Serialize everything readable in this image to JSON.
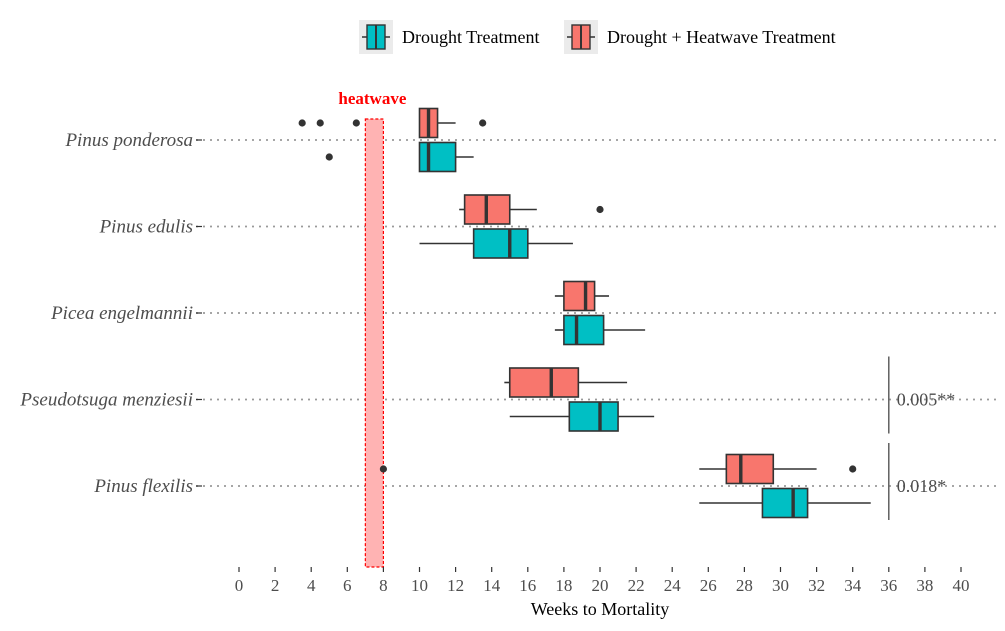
{
  "chart_data": {
    "type": "boxplot",
    "orientation": "horizontal",
    "xlabel": "Weeks to Mortality",
    "xlim": [
      0,
      40
    ],
    "x_ticks": [
      0,
      2,
      4,
      6,
      8,
      10,
      12,
      14,
      16,
      18,
      20,
      22,
      24,
      26,
      28,
      30,
      32,
      34,
      36,
      38,
      40
    ],
    "categories": [
      "Pinus ponderosa",
      "Pinus edulis",
      "Picea engelmannii",
      "Pseudotsuga menziesii",
      "Pinus flexilis"
    ],
    "legend": {
      "position": "top",
      "entries": [
        "Drought Treatment",
        "Drought + Heatwave Treatment"
      ]
    },
    "series": [
      {
        "name": "Drought Treatment",
        "color": "#00BFC4",
        "boxes": [
          {
            "category": "Pinus ponderosa",
            "whisker_low": 10,
            "q1": 10,
            "median": 10.5,
            "q3": 12,
            "whisker_high": 13,
            "outliers": [
              5
            ]
          },
          {
            "category": "Pinus edulis",
            "whisker_low": 10,
            "q1": 13,
            "median": 15,
            "q3": 16,
            "whisker_high": 18.5,
            "outliers": []
          },
          {
            "category": "Picea engelmannii",
            "whisker_low": 17.5,
            "q1": 18,
            "median": 18.7,
            "q3": 20.2,
            "whisker_high": 22.5,
            "outliers": []
          },
          {
            "category": "Pseudotsuga menziesii",
            "whisker_low": 15,
            "q1": 18.3,
            "median": 20,
            "q3": 21,
            "whisker_high": 23,
            "outliers": []
          },
          {
            "category": "Pinus flexilis",
            "whisker_low": 25.5,
            "q1": 29,
            "median": 30.7,
            "q3": 31.5,
            "whisker_high": 35,
            "outliers": []
          }
        ]
      },
      {
        "name": "Drought + Heatwave Treatment",
        "color": "#F8766D",
        "boxes": [
          {
            "category": "Pinus ponderosa",
            "whisker_low": 10,
            "q1": 10,
            "median": 10.5,
            "q3": 11,
            "whisker_high": 12,
            "outliers": [
              3.5,
              4.5,
              6.5,
              13.5
            ]
          },
          {
            "category": "Pinus edulis",
            "whisker_low": 12.2,
            "q1": 12.5,
            "median": 13.7,
            "q3": 15,
            "whisker_high": 16.5,
            "outliers": [
              20
            ]
          },
          {
            "category": "Picea engelmannii",
            "whisker_low": 17.5,
            "q1": 18,
            "median": 19.2,
            "q3": 19.7,
            "whisker_high": 20.5,
            "outliers": []
          },
          {
            "category": "Pseudotsuga menziesii",
            "whisker_low": 14.7,
            "q1": 15,
            "median": 17.3,
            "q3": 18.8,
            "whisker_high": 21.5,
            "outliers": []
          },
          {
            "category": "Pinus flexilis",
            "whisker_low": 25.5,
            "q1": 27,
            "median": 27.8,
            "q3": 29.6,
            "whisker_high": 32,
            "outliers": [
              8,
              34
            ]
          }
        ]
      }
    ],
    "annotations": {
      "heatwave": {
        "label": "heatwave",
        "x_start": 7,
        "x_end": 8,
        "color": "#ff0000"
      },
      "significance": [
        {
          "category": "Pseudotsuga menziesii",
          "label": "0.005**"
        },
        {
          "category": "Pinus flexilis",
          "label": "0.018*"
        }
      ]
    },
    "grid": {
      "horizontal_dotted": true,
      "vertical": false
    }
  }
}
